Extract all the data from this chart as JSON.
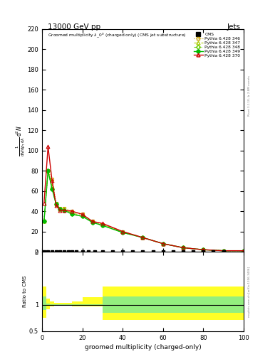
{
  "title_left": "13000 GeV pp",
  "title_right": "Jets",
  "xlabel": "groomed multiplicity (charged-only)",
  "ylabel_ratio": "Ratio to CMS",
  "rivet_text": "Rivet 3.1.10, ≥ 2.8M events",
  "mcplots_text": "mcplots.cern.ch [arXiv:1306.3436]",
  "plot_title": "Groomed multiplicityλ_0⁰ (charged only) (CMS jet substructure)",
  "x_points": [
    1,
    3,
    5,
    7,
    9,
    11,
    15,
    20,
    25,
    30,
    40,
    50,
    60,
    70,
    80,
    90,
    100
  ],
  "p346_y": [
    30,
    80,
    72,
    48,
    43,
    43,
    40,
    37,
    30,
    27,
    20,
    14,
    8,
    4,
    2,
    1,
    1
  ],
  "p347_y": [
    30,
    80,
    65,
    47,
    42,
    42,
    38,
    36,
    30,
    27,
    20,
    14,
    8,
    4,
    2,
    1,
    1
  ],
  "p348_y": [
    30,
    80,
    62,
    47,
    42,
    41,
    37,
    35,
    29,
    26,
    19,
    14,
    8,
    4,
    2,
    1,
    1
  ],
  "p349_y": [
    30,
    80,
    62,
    47,
    42,
    41,
    37,
    35,
    29,
    26,
    19,
    14,
    8,
    4,
    2,
    1,
    1
  ],
  "p370_y": [
    48,
    104,
    70,
    46,
    41,
    41,
    40,
    37,
    30,
    28,
    20,
    14,
    8,
    4,
    2,
    1,
    1
  ],
  "color_346": "#c8a000",
  "color_347": "#aacc00",
  "color_348": "#66cc00",
  "color_349": "#00bb00",
  "color_370": "#cc0000",
  "cms_x": [
    1,
    3,
    5,
    7,
    9,
    11,
    13,
    15,
    17,
    20,
    23,
    26,
    30,
    35,
    40,
    45,
    50,
    55,
    60,
    65,
    70,
    75,
    80,
    85,
    90
  ],
  "cms_y_val": 0,
  "ratio_x_edges": [
    0,
    2,
    4,
    6,
    8,
    10,
    15,
    20,
    25,
    30,
    40,
    50,
    100
  ],
  "ratio_green_lo": [
    0.9,
    0.98,
    0.99,
    0.99,
    0.99,
    0.99,
    0.99,
    0.99,
    0.99,
    0.85,
    0.85,
    0.85
  ],
  "ratio_green_hi": [
    1.15,
    1.02,
    1.01,
    1.01,
    1.01,
    1.01,
    1.01,
    1.01,
    1.01,
    1.15,
    1.15,
    1.15
  ],
  "ratio_yellow_lo": [
    0.75,
    0.92,
    0.97,
    0.98,
    0.98,
    0.98,
    0.97,
    0.97,
    0.97,
    0.72,
    0.72,
    0.72
  ],
  "ratio_yellow_hi": [
    1.35,
    1.12,
    1.06,
    1.04,
    1.04,
    1.04,
    1.06,
    1.14,
    1.14,
    1.35,
    1.35,
    1.35
  ],
  "ylim_main": [
    0,
    220
  ],
  "ylim_ratio": [
    0.5,
    2.0
  ],
  "xlim": [
    0,
    100
  ],
  "yticks_main": [
    0,
    20,
    40,
    60,
    80,
    100,
    120,
    140,
    160,
    180,
    200,
    220
  ],
  "yticks_ratio": [
    0.5,
    1.0,
    2.0
  ]
}
